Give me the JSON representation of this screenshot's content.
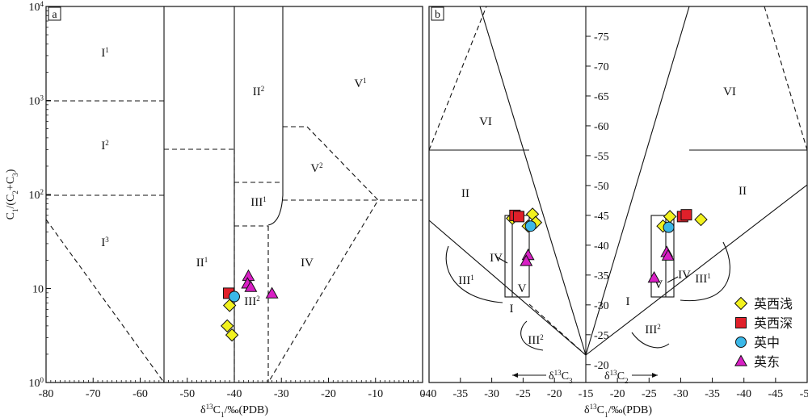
{
  "panel_a": {
    "letter": "a",
    "y_axis_label_parts": [
      "C",
      "1",
      "/(C",
      "2",
      "+C",
      "3",
      ")"
    ],
    "x_axis_label_parts": [
      "δ",
      "13",
      "C",
      "1",
      "/‰(PDB)"
    ],
    "x_ticks": [
      "-80",
      "-70",
      "-60",
      "-50",
      "-40",
      "-30",
      "-20",
      "-10",
      "0"
    ],
    "y_ticks": [
      {
        "base": "10",
        "exp": "0"
      },
      {
        "base": "10",
        "exp": ""
      },
      {
        "base": "10",
        "exp": "2"
      },
      {
        "base": "10",
        "exp": "3"
      },
      {
        "base": "10",
        "exp": "4"
      }
    ],
    "regions": [
      {
        "base": "I",
        "sup": "1"
      },
      {
        "base": "I",
        "sup": "2"
      },
      {
        "base": "I",
        "sup": "3"
      },
      {
        "base": "II",
        "sup": "1"
      },
      {
        "base": "II",
        "sup": "2"
      },
      {
        "base": "III",
        "sup": "1"
      },
      {
        "base": "III",
        "sup": "2"
      },
      {
        "base": "IV",
        "sup": ""
      },
      {
        "base": "V",
        "sup": "1"
      },
      {
        "base": "V",
        "sup": "2"
      }
    ]
  },
  "panel_b": {
    "letter": "b",
    "x_axis_label_parts": [
      "δ",
      "13",
      "C",
      "1",
      "/‰(PDB)"
    ],
    "x_ticks": [
      "-40",
      "-35",
      "-30",
      "-25",
      "-20",
      "-15",
      "-20",
      "-25",
      "-30",
      "-35",
      "-40",
      "-45",
      "-50"
    ],
    "y_ticks": [
      "-20",
      "-25",
      "-30",
      "-35",
      "-40",
      "-45",
      "-50",
      "-55",
      "-60",
      "-65",
      "-70",
      "-75"
    ],
    "c3_label_parts": [
      "δ",
      "13",
      "C",
      "3"
    ],
    "c2_label_parts": [
      "δ",
      "13",
      "C",
      "2"
    ],
    "regions": [
      {
        "base": "VI",
        "sup": ""
      },
      {
        "base": "VI",
        "sup": ""
      },
      {
        "base": "II",
        "sup": ""
      },
      {
        "base": "II",
        "sup": ""
      },
      {
        "base": "I",
        "sup": ""
      },
      {
        "base": "I",
        "sup": ""
      },
      {
        "base": "III",
        "sup": "1"
      },
      {
        "base": "III",
        "sup": "1"
      },
      {
        "base": "III",
        "sup": "2"
      },
      {
        "base": "III",
        "sup": "2"
      },
      {
        "base": "IV",
        "sup": ""
      },
      {
        "base": "IV",
        "sup": ""
      },
      {
        "base": "V",
        "sup": ""
      },
      {
        "base": "V",
        "sup": ""
      }
    ]
  },
  "legend": [
    {
      "label": "英西浅",
      "marker": "diamond",
      "color": "#f2f21e"
    },
    {
      "label": "英西深",
      "marker": "square",
      "color": "#e0202a"
    },
    {
      "label": "英中",
      "marker": "circle",
      "color": "#3bb8e8"
    },
    {
      "label": "英东",
      "marker": "triangle",
      "color": "#d81fc4"
    }
  ],
  "chart_data": [
    {
      "type": "scatter",
      "panel": "a",
      "x_scale": "linear",
      "y_scale": "log",
      "xlim": [
        -80,
        0
      ],
      "ylim": [
        1,
        10000
      ],
      "series": [
        {
          "name": "英西浅",
          "points": [
            [
              -41,
              6.6
            ],
            [
              -41.5,
              4.0
            ],
            [
              -40.5,
              3.2
            ]
          ]
        },
        {
          "name": "英西深",
          "points": [
            [
              -41.2,
              8.9
            ]
          ]
        },
        {
          "name": "英中",
          "points": [
            [
              -40,
              8.2
            ]
          ]
        },
        {
          "name": "英东",
          "points": [
            [
              -37,
              13.5
            ],
            [
              -37.2,
              11.2
            ],
            [
              -36.5,
              10.3
            ],
            [
              -32,
              8.8
            ]
          ]
        }
      ]
    },
    {
      "type": "scatter",
      "panel": "b",
      "x_left": "δ13C3",
      "x_right": "δ13C2",
      "xlim_left": [
        -40,
        -15
      ],
      "xlim_right": [
        -15,
        -50
      ],
      "ylim": [
        -17,
        -80
      ],
      "series": [
        {
          "name": "英西浅",
          "points_c3": [
            [
              -26.7,
              -44.5
            ],
            [
              -23.5,
              -45.2
            ],
            [
              -23.0,
              -43.8
            ],
            [
              -24.2,
              -43.2
            ]
          ],
          "points_c2": [
            [
              -27.2,
              -43.2
            ],
            [
              -28.3,
              -44.8
            ],
            [
              -33.2,
              -44.3
            ]
          ]
        },
        {
          "name": "英西深",
          "points_c3": [
            [
              -26.3,
              -45.0
            ],
            [
              -25.7,
              -44.8
            ]
          ],
          "points_c2": [
            [
              -30.3,
              -44.8
            ],
            [
              -30.9,
              -45.1
            ]
          ]
        },
        {
          "name": "英中",
          "points_c3": [
            [
              -23.8,
              -43.2
            ]
          ],
          "points_c2": [
            [
              -28.1,
              -43.0
            ]
          ]
        },
        {
          "name": "英东",
          "points_c3": [
            [
              -24.2,
              -38.3
            ],
            [
              -24.5,
              -37.3
            ]
          ],
          "points_c2": [
            [
              -27.8,
              -38.8
            ],
            [
              -28.0,
              -38.2
            ],
            [
              -25.8,
              -34.5
            ]
          ]
        }
      ]
    }
  ]
}
